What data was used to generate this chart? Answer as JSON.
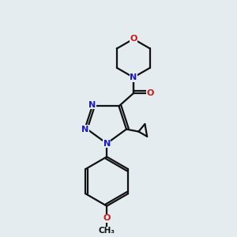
{
  "bg_color": "#e4ecf0",
  "bond_color": "#111111",
  "N_color": "#1818cc",
  "O_color": "#cc1818",
  "lw": 1.6,
  "fs": 8.0,
  "dpi": 100,
  "figsize": [
    3.0,
    3.0
  ],
  "xlim": [
    -1.0,
    9.0
  ],
  "ylim": [
    -0.5,
    9.5
  ]
}
